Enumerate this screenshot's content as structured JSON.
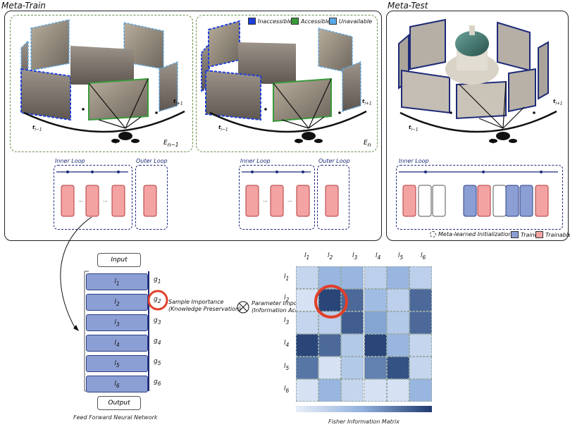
{
  "titles": {
    "meta_train": "Meta-Train",
    "meta_test": "Meta-Test"
  },
  "legend_top": {
    "inaccessible": "Inaccessible",
    "accessible": "Accessible",
    "unavailable": "Unavailable"
  },
  "colors": {
    "inaccessible": "#1f3fd8",
    "accessible": "#3a9a3a",
    "unavailable": "#5aa8e6",
    "trained": "#8c9fd4",
    "trainable": "#f4a3a3",
    "accent_red": "#e0402a"
  },
  "env_labels": {
    "env1": "E",
    "env1_sub": "n−1",
    "env2": "E",
    "env2_sub": "n"
  },
  "time_labels": {
    "t_prev": "t",
    "t_prev_sub": "i−1",
    "t_cur": "t",
    "t_cur_sub": "i",
    "t_next": "t",
    "t_next_sub": "i+1"
  },
  "loops": {
    "inner": "Inner Loop",
    "outer": "Outer Loop"
  },
  "bottom_legend": {
    "init": "Meta-learned Initialization",
    "trained": "Trained",
    "trainable": "Trainable"
  },
  "ffnn": {
    "input": "Input",
    "output": "Output",
    "caption": "Feed Forward Neural Network",
    "layers": [
      "l",
      "l",
      "l",
      "l",
      "l",
      "l"
    ],
    "layer_subs": [
      "1",
      "2",
      "3",
      "4",
      "5",
      "6"
    ],
    "g_labels": [
      "g",
      "g",
      "g",
      "g",
      "g",
      "g"
    ]
  },
  "sample_importance": {
    "line1": "Sample Importance",
    "line2": "(Knowledge Preservation)"
  },
  "parameter_importance": {
    "line1": "Parameter Importance",
    "line2": "(Information Acquisition)"
  },
  "fisher": {
    "caption": "Fisher Information Matrix",
    "labels": [
      "l",
      "l",
      "l",
      "l",
      "l",
      "l"
    ],
    "subs": [
      "1",
      "2",
      "3",
      "4",
      "5",
      "6"
    ],
    "matrix": [
      [
        0.2,
        0.45,
        0.45,
        0.25,
        0.45,
        0.25
      ],
      [
        0.1,
        0.95,
        0.8,
        0.4,
        0.25,
        0.8
      ],
      [
        0.2,
        0.25,
        0.85,
        0.55,
        0.3,
        0.8
      ],
      [
        0.95,
        0.8,
        0.3,
        0.95,
        0.45,
        0.2
      ],
      [
        0.75,
        0.1,
        0.3,
        0.7,
        0.9,
        0.2
      ],
      [
        0.1,
        0.45,
        0.2,
        0.1,
        0.1,
        0.45
      ]
    ]
  }
}
